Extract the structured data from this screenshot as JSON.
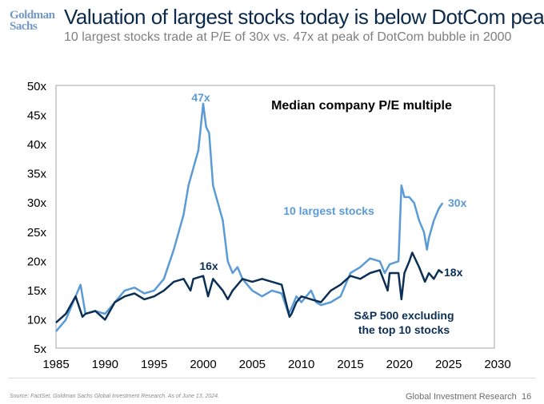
{
  "header": {
    "logo": "Goldman Sachs",
    "logo_line1": "Goldman",
    "logo_line2": "Sachs",
    "title": "Valuation of largest stocks today is below DotCom peak",
    "subtitle": "10 largest stocks trade at P/E of 30x vs. 47x at peak of DotCom bubble in 2000"
  },
  "footer": {
    "source": "Source: FactSet, Goldman Sachs Global Investment Research. As of June 13, 2024.",
    "brand": "Global Investment Research",
    "page": "16"
  },
  "colors": {
    "largest": "#5b9bd5",
    "excluding": "#0b2f55",
    "title": "#0b2a4a"
  },
  "chart_data": {
    "type": "line",
    "title": "Median company P/E multiple",
    "xlim": [
      1985,
      2030
    ],
    "ylim": [
      5,
      50
    ],
    "x_ticks": [
      "1985",
      "1990",
      "1995",
      "2000",
      "2005",
      "2010",
      "2015",
      "2020",
      "2025",
      "2030"
    ],
    "y_ticks": [
      "5x",
      "10x",
      "15x",
      "20x",
      "25x",
      "30x",
      "35x",
      "40x",
      "45x",
      "50x"
    ],
    "grid": false,
    "annotations": [
      {
        "text": "47x",
        "series": "10 largest stocks"
      },
      {
        "text": "30x",
        "series": "10 largest stocks"
      },
      {
        "text": "16x",
        "series": "S&P 500 excluding the top 10 stocks"
      },
      {
        "text": "18x",
        "series": "S&P 500 excluding the top 10 stocks"
      }
    ],
    "series": [
      {
        "name": "10 largest stocks",
        "label_lines": [
          "10 largest stocks"
        ],
        "color": "#5b9bd5",
        "x": [
          1985,
          1986,
          1987,
          1987.5,
          1988,
          1989,
          1990,
          1991,
          1992,
          1993,
          1994,
          1995,
          1996,
          1997,
          1998,
          1998.5,
          1999,
          1999.5,
          2000,
          2000.3,
          2000.6,
          2001,
          2001.5,
          2002,
          2002.5,
          2003,
          2003.5,
          2004,
          2005,
          2006,
          2007,
          2008,
          2008.7,
          2009,
          2009.5,
          2010,
          2011,
          2011.5,
          2012,
          2013,
          2014,
          2015,
          2016,
          2017,
          2018,
          2018.5,
          2019,
          2019.9,
          2020.2,
          2020.5,
          2021,
          2021.5,
          2022,
          2022.5,
          2022.8,
          2023,
          2023.5,
          2024,
          2024.4
        ],
        "y": [
          8,
          10,
          14,
          16,
          11,
          11.5,
          11,
          13,
          15,
          15.5,
          14.5,
          15,
          17,
          22,
          28,
          33,
          36,
          39,
          47,
          43,
          42,
          33,
          30,
          27,
          20,
          18,
          19,
          17,
          15,
          14,
          15,
          14.5,
          11,
          12,
          14,
          13,
          15,
          13,
          12.5,
          13,
          14,
          18,
          19,
          20.5,
          20,
          18,
          19.5,
          20,
          33,
          31,
          31,
          30,
          27,
          25,
          22,
          24,
          27,
          29,
          30
        ]
      },
      {
        "name": "S&P 500 excluding the top 10 stocks",
        "label_lines": [
          "S&P 500 excluding",
          "the top 10 stocks"
        ],
        "color": "#0b2f55",
        "x": [
          1985,
          1986,
          1987,
          1987.7,
          1988,
          1989,
          1990,
          1991,
          1992,
          1993,
          1994,
          1995,
          1996,
          1997,
          1998,
          1998.7,
          1999,
          2000,
          2000.5,
          2001,
          2002,
          2002.5,
          2003,
          2004,
          2005,
          2006,
          2007,
          2008,
          2008.8,
          2009,
          2009.5,
          2010,
          2011,
          2012,
          2013,
          2014,
          2015,
          2016,
          2017,
          2018,
          2018.8,
          2019,
          2019.9,
          2020.2,
          2020.5,
          2021,
          2021.3,
          2022,
          2022.6,
          2023,
          2023.5,
          2024,
          2024.4
        ],
        "y": [
          9.5,
          11,
          14,
          10.5,
          11,
          11.5,
          10,
          13,
          14,
          14.5,
          13.5,
          14,
          15,
          16.5,
          17,
          15,
          17,
          17.5,
          14,
          17,
          15,
          13.5,
          15,
          17,
          16.5,
          17,
          16.5,
          16,
          10.5,
          11,
          13,
          14,
          13.5,
          13,
          15,
          16,
          17.5,
          17,
          18,
          18.5,
          15,
          18,
          18,
          13.5,
          18,
          20,
          21.5,
          19,
          16.5,
          18,
          17,
          18.5,
          18
        ]
      }
    ]
  }
}
